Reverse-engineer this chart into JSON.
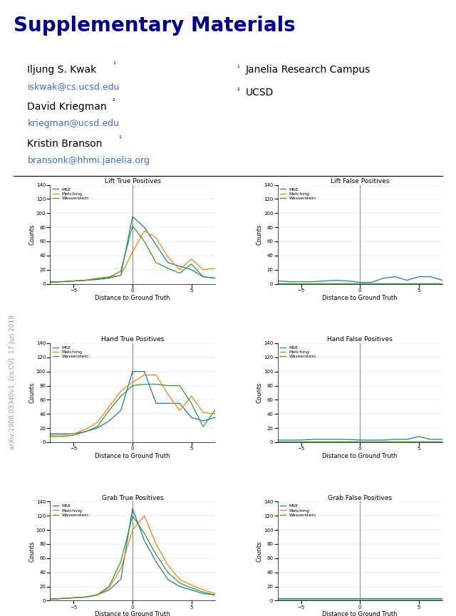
{
  "title": "Supplementary Materials",
  "authors": [
    {
      "name": "Iljung S. Kwak",
      "sup": "1",
      "email": "iskwak@cs.ucsd.edu"
    },
    {
      "name": "David Kriegman",
      "sup": "2",
      "email": "kriegman@ucsd.edu"
    },
    {
      "name": "Kristin Branson",
      "sup": "1",
      "email": "bransonk@hhmi.janelia.org"
    }
  ],
  "affiliations": [
    {
      "sup": "1",
      "name": "Janelia Research Campus"
    },
    {
      "sup": "2",
      "name": "UCSD"
    }
  ],
  "subplot_titles": [
    "Lift True Positives",
    "Lift False Positives",
    "Hand True Positives",
    "Hand False Positives",
    "Grab True Positives",
    "Grab False Positives"
  ],
  "xlabel": "Distance to Ground Truth",
  "ylabel": "Counts",
  "legend_labels": [
    "MSE",
    "Matching",
    "Wasserstein"
  ],
  "line_colors": [
    "#1f77b4",
    "#ff7f0e",
    "#2ca02c"
  ],
  "ylim": [
    0,
    140
  ],
  "yticks": [
    0,
    20,
    40,
    60,
    80,
    100,
    120,
    140
  ],
  "title_color": "#00008B",
  "email_color": "#4169E1",
  "watermark_text": "arXiv:1906.03340v1  [cs.CV]  17 Jun 2019",
  "plots": {
    "lift_tp": {
      "mse_x": [
        -7,
        -6,
        -5,
        -4,
        -3,
        -2,
        -1,
        0,
        1,
        2,
        3,
        4,
        5,
        6,
        7
      ],
      "mse_y": [
        3,
        3,
        4,
        5,
        6,
        8,
        12,
        95,
        80,
        55,
        30,
        25,
        20,
        10,
        8
      ],
      "match_x": [
        -7,
        -6,
        -5,
        -4,
        -3,
        -2,
        -1,
        0,
        1,
        2,
        3,
        4,
        5,
        6,
        7
      ],
      "match_y": [
        2,
        3,
        4,
        5,
        8,
        10,
        12,
        45,
        75,
        65,
        38,
        20,
        35,
        20,
        22
      ],
      "wasser_x": [
        -7,
        -6,
        -5,
        -4,
        -3,
        -2,
        -1,
        0,
        1,
        2,
        3,
        4,
        5,
        6,
        7
      ],
      "wasser_y": [
        2,
        3,
        4,
        5,
        7,
        9,
        18,
        82,
        60,
        30,
        22,
        15,
        28,
        10,
        8
      ],
      "xlim": [
        -7,
        7
      ]
    },
    "lift_fp": {
      "mse_x": [
        -7,
        -6,
        -5,
        -4,
        -3,
        -2,
        -1,
        0,
        1,
        2,
        3,
        4,
        5,
        6,
        7
      ],
      "mse_y": [
        4,
        3,
        3,
        3,
        4,
        5,
        4,
        2,
        2,
        8,
        10,
        5,
        10,
        10,
        5
      ],
      "match_x": [
        -7,
        -6,
        -5,
        -4,
        -3,
        -2,
        -1,
        0,
        1,
        2,
        3,
        4,
        5,
        6,
        7
      ],
      "match_y": [
        1,
        1,
        1,
        1,
        1,
        1,
        1,
        1,
        1,
        1,
        1,
        1,
        1,
        1,
        1
      ],
      "wasser_x": [
        -7,
        -6,
        -5,
        -4,
        -3,
        -2,
        -1,
        0,
        1,
        2,
        3,
        4,
        5,
        6,
        7
      ],
      "wasser_y": [
        1,
        1,
        1,
        1,
        1,
        1,
        1,
        1,
        1,
        1,
        1,
        1,
        1,
        1,
        1
      ],
      "xlim": [
        -7,
        7
      ]
    },
    "hand_tp": {
      "mse_x": [
        -7,
        -6,
        -5,
        -4,
        -3,
        -2,
        -1,
        0,
        1,
        2,
        3,
        4,
        5,
        6,
        7
      ],
      "mse_y": [
        12,
        12,
        12,
        15,
        20,
        30,
        45,
        100,
        100,
        55,
        55,
        55,
        35,
        30,
        35
      ],
      "match_x": [
        -7,
        -6,
        -5,
        -4,
        -3,
        -2,
        -1,
        0,
        1,
        2,
        3,
        4,
        5,
        6,
        7
      ],
      "match_y": [
        10,
        10,
        12,
        18,
        28,
        50,
        72,
        85,
        95,
        95,
        68,
        45,
        65,
        42,
        40
      ],
      "wasser_x": [
        -7,
        -6,
        -5,
        -4,
        -3,
        -2,
        -1,
        0,
        1,
        2,
        3,
        4,
        5,
        6,
        7
      ],
      "wasser_y": [
        8,
        8,
        10,
        15,
        22,
        45,
        65,
        80,
        82,
        82,
        80,
        80,
        55,
        22,
        45
      ],
      "xlim": [
        -7,
        7
      ]
    },
    "hand_fp": {
      "mse_x": [
        -7,
        -6,
        -5,
        -4,
        -3,
        -2,
        -1,
        0,
        1,
        2,
        3,
        4,
        5,
        6,
        7
      ],
      "mse_y": [
        3,
        3,
        3,
        4,
        4,
        4,
        4,
        3,
        3,
        3,
        4,
        4,
        8,
        4,
        4
      ],
      "match_x": [
        -7,
        -6,
        -5,
        -4,
        -3,
        -2,
        -1,
        0,
        1,
        2,
        3,
        4,
        5,
        6,
        7
      ],
      "match_y": [
        1,
        1,
        1,
        1,
        1,
        1,
        1,
        1,
        1,
        1,
        1,
        1,
        1,
        1,
        1
      ],
      "wasser_x": [
        -7,
        -6,
        -5,
        -4,
        -3,
        -2,
        -1,
        0,
        1,
        2,
        3,
        4,
        5,
        6,
        7
      ],
      "wasser_y": [
        1,
        1,
        1,
        1,
        1,
        1,
        1,
        1,
        1,
        1,
        1,
        1,
        1,
        1,
        1
      ],
      "xlim": [
        -7,
        7
      ]
    },
    "grab_tp": {
      "mse_x": [
        -7,
        -6,
        -5,
        -4,
        -3,
        -2,
        -1,
        0,
        1,
        2,
        3,
        4,
        5,
        6,
        7
      ],
      "mse_y": [
        2,
        3,
        4,
        5,
        8,
        15,
        30,
        130,
        85,
        55,
        30,
        20,
        15,
        10,
        8
      ],
      "match_x": [
        -7,
        -6,
        -5,
        -4,
        -3,
        -2,
        -1,
        0,
        1,
        2,
        3,
        4,
        5,
        6,
        7
      ],
      "match_y": [
        2,
        3,
        4,
        5,
        8,
        18,
        45,
        100,
        120,
        80,
        50,
        30,
        22,
        15,
        10
      ],
      "wasser_x": [
        -7,
        -6,
        -5,
        -4,
        -3,
        -2,
        -1,
        0,
        1,
        2,
        3,
        4,
        5,
        6,
        7
      ],
      "wasser_y": [
        2,
        3,
        4,
        5,
        8,
        20,
        55,
        120,
        95,
        65,
        40,
        25,
        18,
        12,
        8
      ],
      "xlim": [
        -7,
        7
      ]
    },
    "grab_fp": {
      "mse_x": [
        -7,
        -6,
        -5,
        -4,
        -3,
        -2,
        -1,
        0,
        1,
        2,
        3,
        4,
        5,
        6,
        7
      ],
      "mse_y": [
        3,
        3,
        3,
        3,
        3,
        3,
        3,
        3,
        3,
        3,
        3,
        3,
        3,
        3,
        3
      ],
      "match_x": [
        -7,
        -6,
        -5,
        -4,
        -3,
        -2,
        -1,
        0,
        1,
        2,
        3,
        4,
        5,
        6,
        7
      ],
      "match_y": [
        1,
        1,
        1,
        1,
        1,
        1,
        1,
        1,
        1,
        1,
        1,
        1,
        1,
        1,
        1
      ],
      "wasser_x": [
        -7,
        -6,
        -5,
        -4,
        -3,
        -2,
        -1,
        0,
        1,
        2,
        3,
        4,
        5,
        6,
        7
      ],
      "wasser_y": [
        1,
        1,
        1,
        1,
        1,
        1,
        1,
        1,
        1,
        1,
        1,
        1,
        1,
        1,
        1
      ],
      "xlim": [
        -7,
        7
      ]
    }
  }
}
